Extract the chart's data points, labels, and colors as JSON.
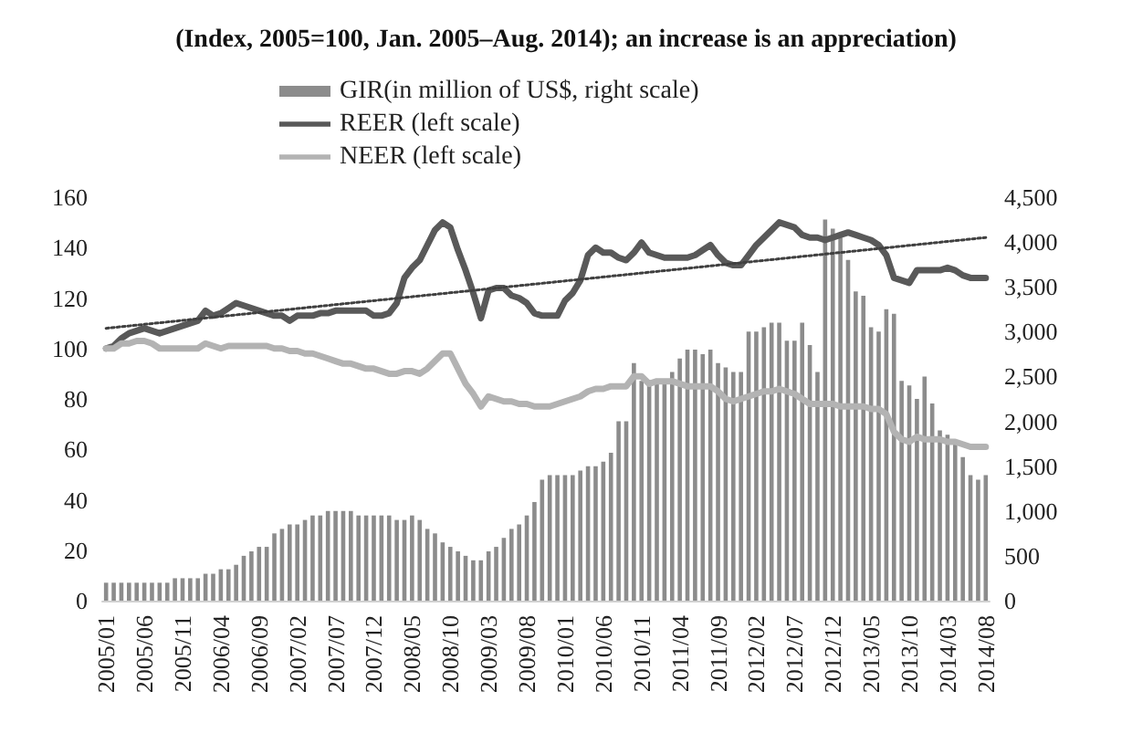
{
  "chart_data": {
    "type": "line",
    "title": "(Index, 2005=100, Jan. 2005–Aug. 2014); an increase is an appreciation)",
    "categories": [
      "2005/01",
      null,
      null,
      null,
      null,
      "2005/06",
      null,
      null,
      null,
      null,
      "2005/11",
      null,
      null,
      null,
      null,
      "2006/04",
      null,
      null,
      null,
      null,
      "2006/09",
      null,
      null,
      null,
      null,
      "2007/02",
      null,
      null,
      null,
      null,
      "2007/07",
      null,
      null,
      null,
      null,
      "2007/12",
      null,
      null,
      null,
      null,
      "2008/05",
      null,
      null,
      null,
      null,
      "2008/10",
      null,
      null,
      null,
      null,
      "2009/03",
      null,
      null,
      null,
      null,
      "2009/08",
      null,
      null,
      null,
      null,
      "2010/01",
      null,
      null,
      null,
      null,
      "2010/06",
      null,
      null,
      null,
      null,
      "2010/11",
      null,
      null,
      null,
      null,
      "2011/04",
      null,
      null,
      null,
      null,
      "2011/09",
      null,
      null,
      null,
      null,
      "2012/02",
      null,
      null,
      null,
      null,
      "2012/07",
      null,
      null,
      null,
      null,
      "2012/12",
      null,
      null,
      null,
      null,
      "2013/05",
      null,
      null,
      null,
      null,
      "2013/10",
      null,
      null,
      null,
      null,
      "2014/03",
      null,
      null,
      null,
      null,
      "2014/08"
    ],
    "series": [
      {
        "name": "GIR(in million of US$, right scale)",
        "type": "bar",
        "axis": "y2",
        "color": "#8c8c8c",
        "values": [
          200,
          200,
          200,
          200,
          200,
          200,
          200,
          200,
          200,
          250,
          250,
          250,
          250,
          300,
          300,
          350,
          350,
          400,
          500,
          550,
          600,
          600,
          750,
          800,
          850,
          850,
          900,
          950,
          950,
          1000,
          1000,
          1000,
          1000,
          950,
          950,
          950,
          950,
          950,
          900,
          900,
          950,
          900,
          800,
          750,
          650,
          600,
          550,
          500,
          450,
          450,
          550,
          600,
          700,
          800,
          850,
          950,
          1100,
          1350,
          1400,
          1400,
          1400,
          1400,
          1450,
          1500,
          1500,
          1550,
          1650,
          2000,
          2000,
          2650,
          2450,
          2450,
          2450,
          2450,
          2550,
          2700,
          2800,
          2800,
          2750,
          2800,
          2650,
          2600,
          2550,
          2550,
          3000,
          3000,
          3050,
          3100,
          3100,
          2900,
          2900,
          3100,
          2850,
          2550,
          4250,
          4150,
          4050,
          3800,
          3450,
          3400,
          3050,
          3000,
          3250,
          3200,
          2450,
          2400,
          2250,
          2500,
          2200,
          1900,
          1850,
          1750,
          1600,
          1400,
          1350,
          1400
        ]
      },
      {
        "name": "REER (left scale)",
        "color": "#595959",
        "values": [
          100,
          101,
          104,
          106,
          107,
          108,
          107,
          106,
          107,
          108,
          109,
          110,
          111,
          115,
          113,
          114,
          116,
          118,
          117,
          116,
          115,
          114,
          113,
          113,
          111,
          113,
          113,
          113,
          114,
          114,
          115,
          115,
          115,
          115,
          115,
          113,
          113,
          114,
          118,
          128,
          132,
          135,
          141,
          147,
          150,
          148,
          139,
          131,
          122,
          112,
          123,
          124,
          124,
          121,
          120,
          118,
          114,
          113,
          113,
          113,
          119,
          122,
          127,
          137,
          140,
          138,
          138,
          136,
          135,
          138,
          142,
          138,
          137,
          136,
          136,
          136,
          136,
          137,
          139,
          141,
          137,
          134,
          133,
          133,
          137,
          141,
          144,
          147,
          150,
          149,
          148,
          145,
          144,
          144,
          143,
          144,
          145,
          146,
          145,
          144,
          143,
          141,
          137,
          128,
          127,
          126,
          131,
          131,
          131,
          131,
          132,
          131,
          129,
          128,
          128,
          128
        ]
      },
      {
        "name": "NEER (left scale)",
        "color": "#b3b3b3",
        "values": [
          100,
          100,
          102,
          102,
          103,
          103,
          102,
          100,
          100,
          100,
          100,
          100,
          100,
          102,
          101,
          100,
          101,
          101,
          101,
          101,
          101,
          101,
          100,
          100,
          99,
          99,
          98,
          98,
          97,
          96,
          95,
          94,
          94,
          93,
          92,
          92,
          91,
          90,
          90,
          91,
          91,
          90,
          92,
          95,
          98,
          98,
          92,
          86,
          82,
          77,
          81,
          80,
          79,
          79,
          78,
          78,
          77,
          77,
          77,
          78,
          79,
          80,
          81,
          83,
          84,
          84,
          85,
          85,
          85,
          89,
          89,
          86,
          87,
          87,
          87,
          86,
          85,
          85,
          85,
          85,
          83,
          80,
          79,
          80,
          81,
          82,
          83,
          83,
          84,
          83,
          82,
          80,
          78,
          78,
          78,
          78,
          77,
          77,
          77,
          77,
          76,
          76,
          74,
          67,
          64,
          63,
          65,
          64,
          64,
          64,
          63,
          63,
          62,
          61,
          61,
          61
        ]
      },
      {
        "color": "#404040",
        "line_style": "dotted",
        "values": [
          108,
          null,
          null,
          null,
          null,
          null,
          null,
          null,
          null,
          null,
          null,
          null,
          null,
          null,
          null,
          null,
          null,
          null,
          null,
          null,
          null,
          null,
          null,
          null,
          null,
          null,
          null,
          null,
          null,
          null,
          null,
          null,
          null,
          null,
          null,
          null,
          null,
          null,
          null,
          null,
          null,
          null,
          null,
          null,
          null,
          null,
          null,
          null,
          null,
          null,
          null,
          null,
          null,
          null,
          null,
          null,
          null,
          null,
          null,
          null,
          null,
          null,
          null,
          null,
          null,
          null,
          null,
          null,
          null,
          null,
          null,
          null,
          null,
          null,
          null,
          null,
          null,
          null,
          null,
          null,
          null,
          null,
          null,
          null,
          null,
          null,
          null,
          null,
          null,
          null,
          null,
          null,
          null,
          null,
          null,
          null,
          null,
          null,
          null,
          null,
          null,
          null,
          null,
          null,
          null,
          null,
          null,
          null,
          null,
          null,
          null,
          null,
          null,
          null,
          null,
          144
        ]
      }
    ],
    "ylim": [
      0,
      160
    ],
    "yticks": [
      0,
      20,
      40,
      60,
      80,
      100,
      120,
      140,
      160
    ],
    "y2lim": [
      0,
      4500
    ],
    "y2ticks": [
      0,
      500,
      {
        "value": 1000,
        "label": "1,000"
      },
      {
        "value": 1500,
        "label": "1,500"
      },
      {
        "value": 2000,
        "label": "2,000"
      },
      {
        "value": 2500,
        "label": "2,500"
      },
      {
        "value": 3000,
        "label": "3,000"
      },
      {
        "value": 3500,
        "label": "3,500"
      },
      {
        "value": 4000,
        "label": "4,000"
      },
      {
        "value": 4500,
        "label": "4,500"
      }
    ],
    "legend": "top left",
    "marker": "none",
    "line_style": "solid"
  }
}
